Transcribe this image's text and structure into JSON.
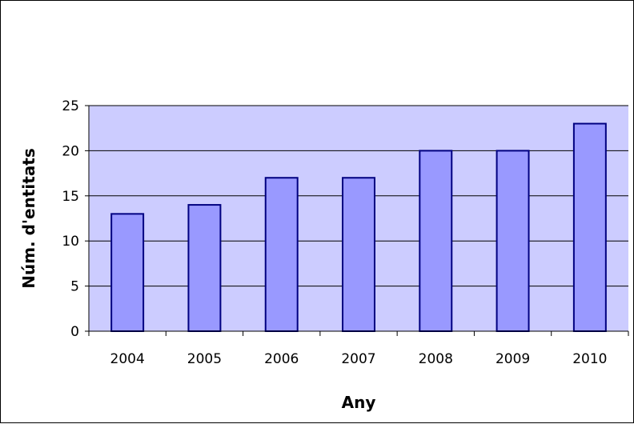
{
  "chart_data": {
    "type": "bar",
    "title": "",
    "xlabel": "Any",
    "ylabel": "Núm. d'entitats",
    "categories": [
      "2004",
      "2005",
      "2006",
      "2007",
      "2008",
      "2009",
      "2010"
    ],
    "values": [
      13,
      14,
      17,
      17,
      20,
      20,
      23
    ],
    "ylim": [
      0,
      25
    ],
    "yticks": [
      "0",
      "5",
      "10",
      "15",
      "20",
      "25"
    ],
    "grid": true,
    "legend": "none",
    "colors": {
      "plot_background": "#ccccff",
      "bar_fill": "#9999ff",
      "bar_stroke": "#000080",
      "grid": "#000000"
    }
  }
}
